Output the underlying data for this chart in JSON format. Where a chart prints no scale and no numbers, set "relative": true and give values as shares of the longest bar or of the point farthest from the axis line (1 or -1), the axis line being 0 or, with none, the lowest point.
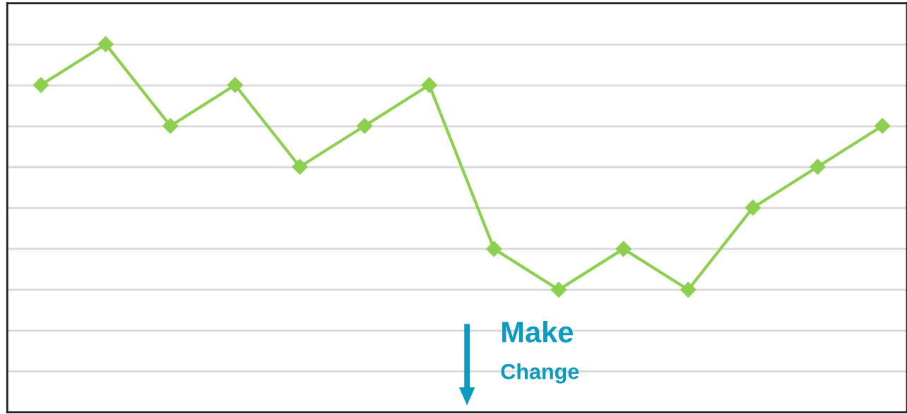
{
  "chart_data": {
    "type": "line",
    "relative": true,
    "categories": [
      null,
      null,
      null,
      null,
      null,
      null,
      null,
      null,
      null,
      null,
      null,
      null,
      null,
      null
    ],
    "series": [
      {
        "color": "#8dcf4f",
        "values": [
          0.889,
          1,
          0.778,
          0.889,
          0.667,
          0.778,
          0.889,
          0.444,
          0.333,
          0.444,
          0.333,
          0.556,
          0.667,
          0.778
        ]
      }
    ],
    "marker": "diamond",
    "line_style": "solid",
    "grid": "y",
    "annotations": [
      "Make",
      "Change"
    ]
  }
}
